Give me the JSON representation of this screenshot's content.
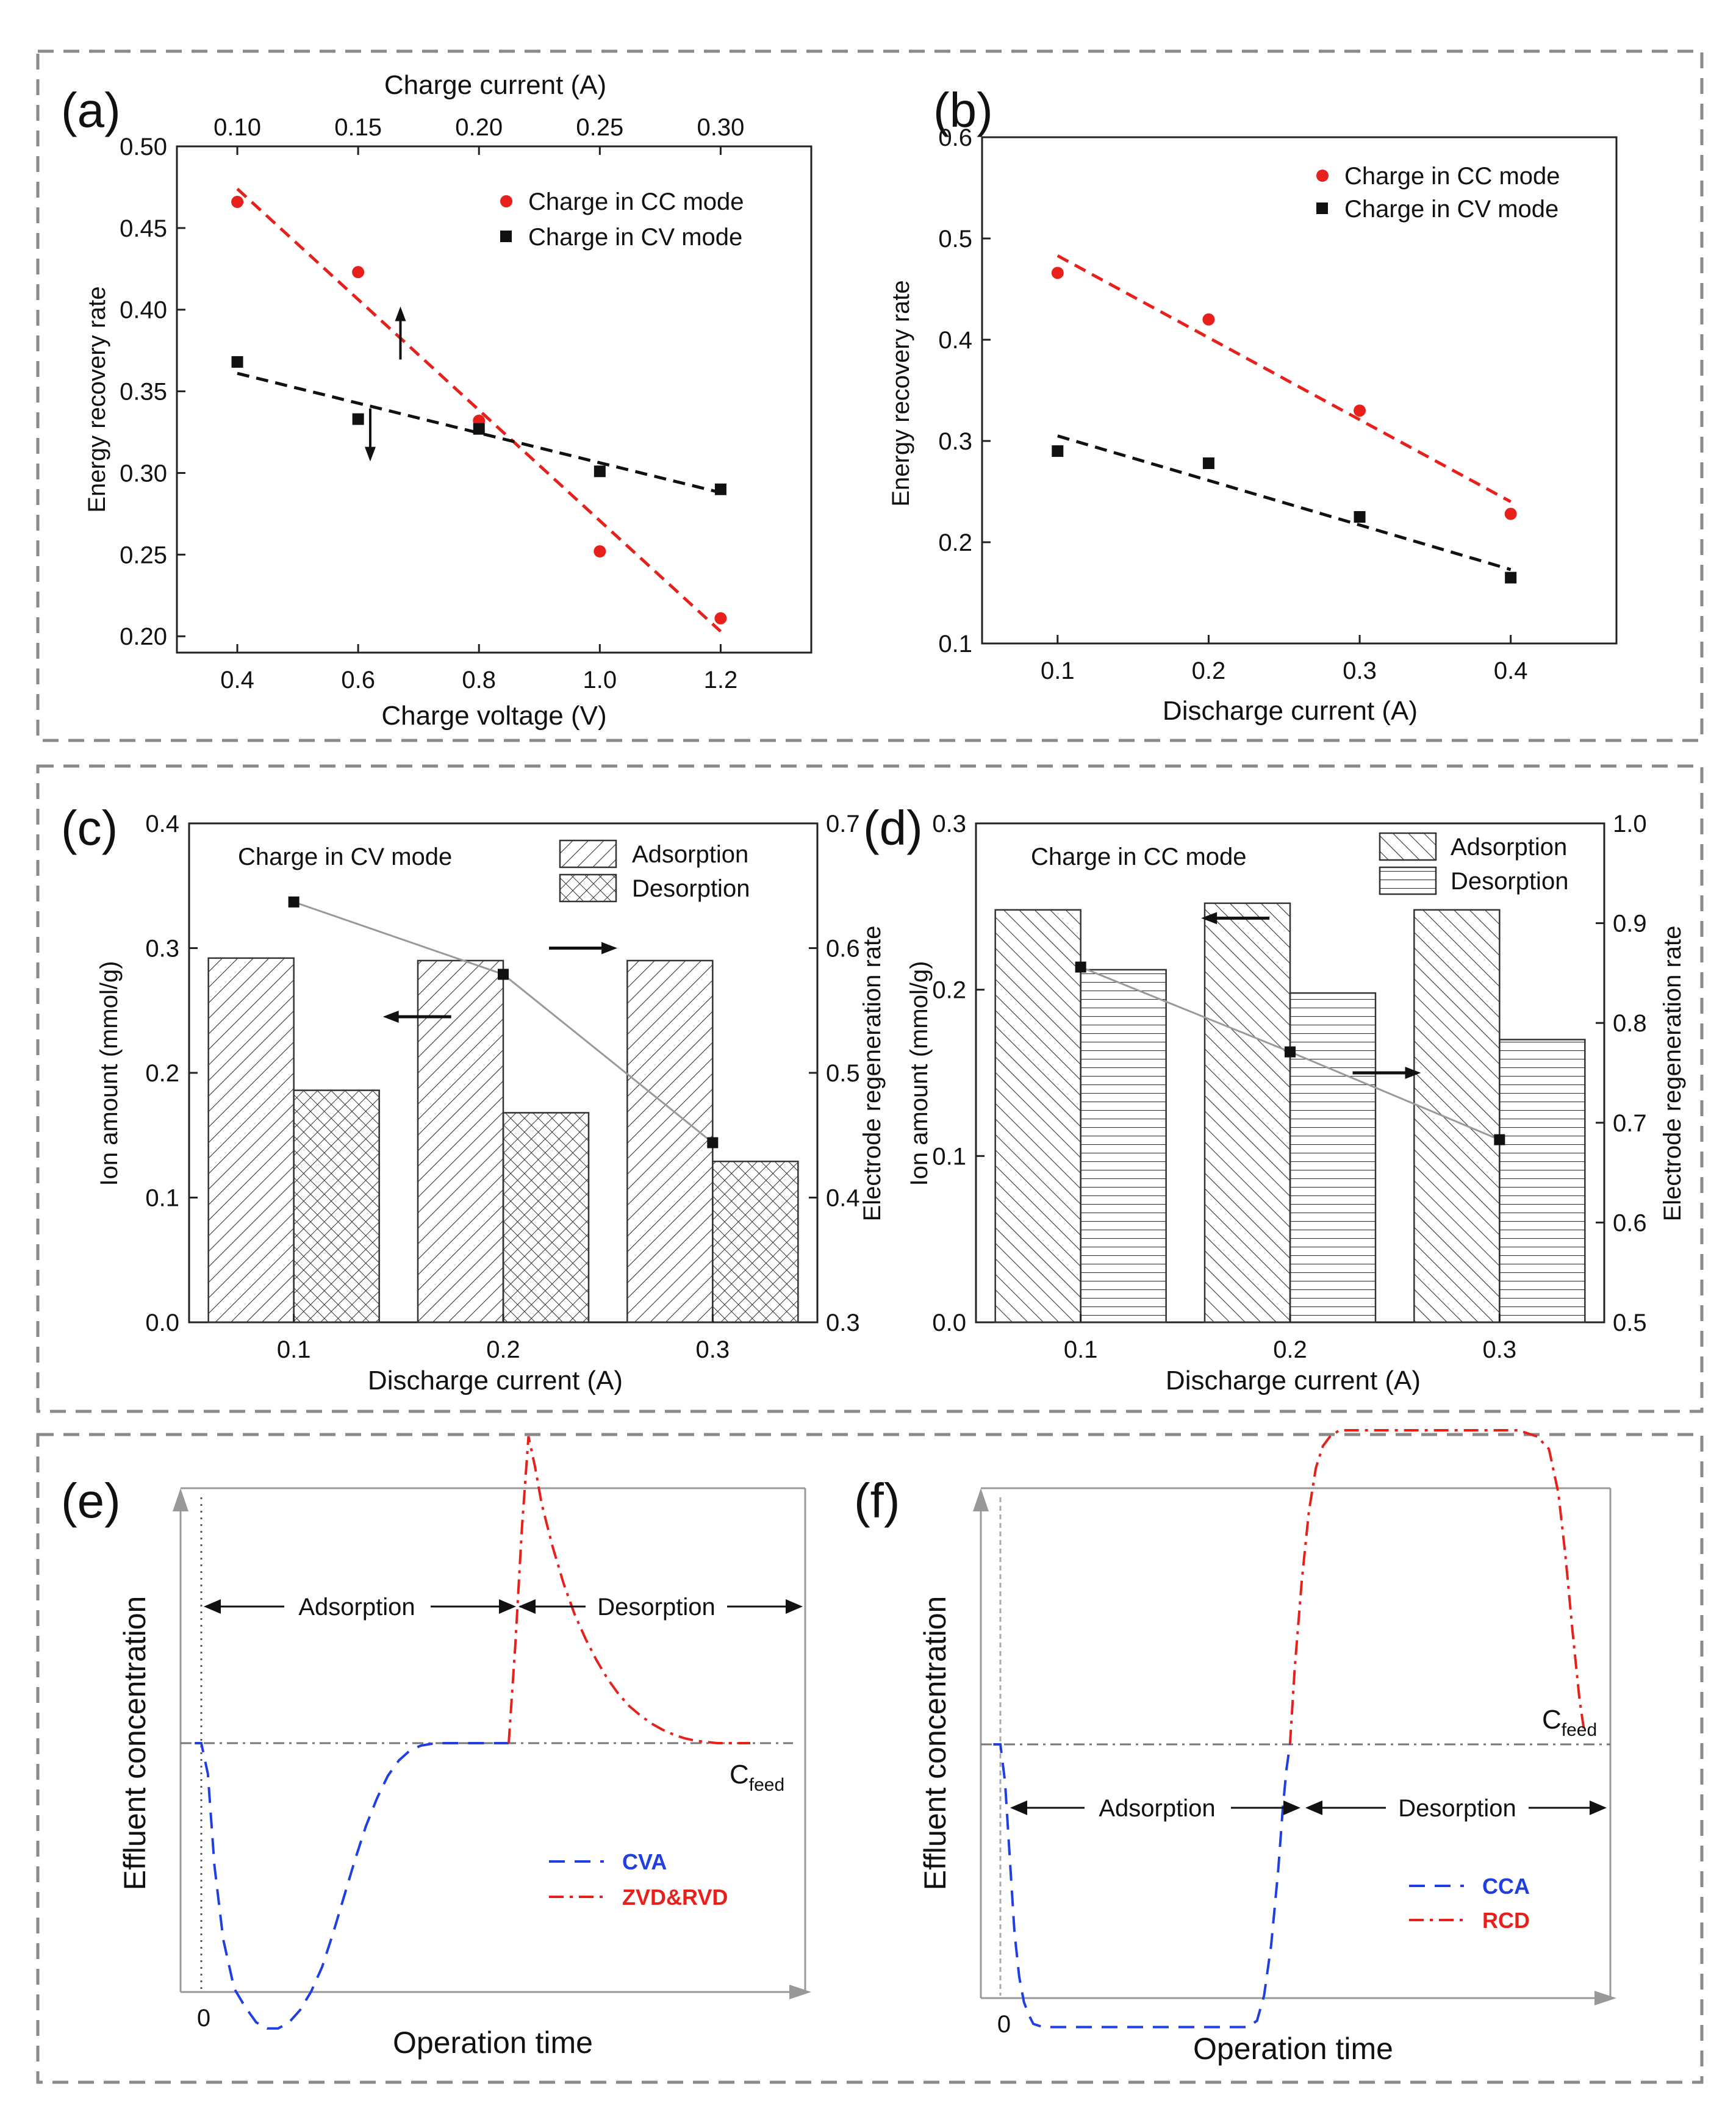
{
  "colors": {
    "cc": "#e8201c",
    "cv": "#111111",
    "blue": "#1f3fe0",
    "gray": "#888888",
    "frame": "#8a8a8a"
  },
  "chart_data": [
    {
      "id": "a",
      "type": "scatter",
      "panel_label": "(a)",
      "xlabel": "Charge voltage  (V)",
      "top_xlabel": "Charge current (A)",
      "ylabel": "Energy recovery rate",
      "xlim": [
        0.3,
        1.35
      ],
      "ylim": [
        0.19,
        0.5
      ],
      "x_ticks": [
        "0.4",
        "0.6",
        "0.8",
        "1.0",
        "1.2"
      ],
      "top_ticks": [
        "0.10",
        "0.15",
        "0.20",
        "0.25",
        "0.30"
      ],
      "y_ticks": [
        "0.20",
        "0.25",
        "0.30",
        "0.35",
        "0.40",
        "0.45",
        "0.50"
      ],
      "series": [
        {
          "name": "Charge in CC mode",
          "color": "#e8201c",
          "marker": "circle",
          "x": [
            0.4,
            0.6,
            0.8,
            1.0,
            1.2
          ],
          "y": [
            0.466,
            0.423,
            0.332,
            0.252,
            0.211
          ],
          "fit": [
            [
              0.4,
              0.474
            ],
            [
              1.2,
              0.203
            ]
          ]
        },
        {
          "name": "Charge in CV mode",
          "color": "#111111",
          "marker": "square",
          "x": [
            0.4,
            0.6,
            0.8,
            1.0,
            1.2
          ],
          "y": [
            0.368,
            0.333,
            0.327,
            0.301,
            0.29
          ],
          "fit": [
            [
              0.4,
              0.361
            ],
            [
              1.2,
              0.288
            ]
          ]
        }
      ],
      "annotations": [
        {
          "type": "arrow-up",
          "x": 0.67,
          "y": 0.39
        },
        {
          "type": "arrow-down",
          "x": 0.62,
          "y": 0.319
        }
      ]
    },
    {
      "id": "b",
      "type": "scatter",
      "panel_label": "(b)",
      "xlabel": "Discharge current (A)",
      "ylabel": "Energy recovery rate",
      "xlim": [
        0.05,
        0.47
      ],
      "ylim": [
        0.1,
        0.6
      ],
      "x_ticks": [
        "0.1",
        "0.2",
        "0.3",
        "0.4"
      ],
      "y_ticks": [
        "0.1",
        "0.2",
        "0.3",
        "0.4",
        "0.5",
        "0.6"
      ],
      "series": [
        {
          "name": "Charge in CC mode",
          "color": "#e8201c",
          "marker": "circle",
          "x": [
            0.1,
            0.2,
            0.3,
            0.4
          ],
          "y": [
            0.466,
            0.42,
            0.33,
            0.228
          ],
          "fit": [
            [
              0.1,
              0.483
            ],
            [
              0.4,
              0.24
            ]
          ]
        },
        {
          "name": "Charge in CV mode",
          "color": "#111111",
          "marker": "square",
          "x": [
            0.1,
            0.2,
            0.3,
            0.4
          ],
          "y": [
            0.29,
            0.278,
            0.225,
            0.165
          ],
          "fit": [
            [
              0.1,
              0.305
            ],
            [
              0.4,
              0.173
            ]
          ]
        }
      ]
    },
    {
      "id": "c",
      "type": "bar",
      "panel_label": "(c)",
      "inset_title": "Charge in CV mode",
      "xlabel": "Discharge current (A)",
      "ylabel": "Ion amount  (mmol/g)",
      "ylabel_right": "Electrode  regeneration rate",
      "categories": [
        "0.1",
        "0.2",
        "0.3"
      ],
      "ylim": [
        0,
        0.4
      ],
      "ylim_right": [
        0.3,
        0.7
      ],
      "y_ticks": [
        "0.0",
        "0.1",
        "0.2",
        "0.3",
        "0.4"
      ],
      "y_ticks_right": [
        "0.3",
        "0.4",
        "0.5",
        "0.6",
        "0.7"
      ],
      "series": [
        {
          "name": "Adsorption",
          "pattern": "diag",
          "values": [
            0.292,
            0.29,
            0.29
          ]
        },
        {
          "name": "Desorption",
          "pattern": "cross",
          "values": [
            0.186,
            0.168,
            0.129
          ]
        }
      ],
      "line": {
        "name": "Electrode regeneration rate",
        "values": [
          0.637,
          0.579,
          0.444
        ]
      },
      "annotations": [
        {
          "type": "arrow-left",
          "x": 1.6,
          "y": 0.245
        },
        {
          "type": "arrow-right",
          "x": 2.37,
          "y": 0.6
        }
      ]
    },
    {
      "id": "d",
      "type": "bar",
      "panel_label": "(d)",
      "inset_title": "Charge in CC mode",
      "xlabel": "Discharge current (A)",
      "ylabel": "Ion amount  (mmol/g)",
      "ylabel_right": "Electrode regeneration rate",
      "categories": [
        "0.1",
        "0.2",
        "0.3"
      ],
      "ylim": [
        0,
        0.3
      ],
      "ylim_right": [
        0.5,
        1.0
      ],
      "y_ticks": [
        "0.0",
        "0.1",
        "0.2",
        "0.3"
      ],
      "y_ticks_right": [
        "0.5",
        "0.6",
        "0.7",
        "0.8",
        "0.9",
        "1.0"
      ],
      "series": [
        {
          "name": "Adsorption",
          "pattern": "back",
          "values": [
            0.248,
            0.252,
            0.248
          ]
        },
        {
          "name": "Desorption",
          "pattern": "horiz",
          "values": [
            0.212,
            0.198,
            0.17
          ]
        }
      ],
      "line": {
        "name": "Electrode regeneration rate",
        "values": [
          0.856,
          0.771,
          0.683
        ]
      },
      "annotations": [
        {
          "type": "arrow-left",
          "x": 1.75,
          "y": 0.243
        },
        {
          "type": "arrow-right",
          "x": 2.45,
          "y": 0.75
        }
      ]
    },
    {
      "id": "e",
      "type": "line",
      "panel_label": "(e)",
      "xlabel": "Operation time",
      "ylabel": "Effluent concentration",
      "origin_label": "0",
      "feed_label": "C",
      "feed_sub": "feed",
      "phases": [
        "Adsorption",
        "Desorption"
      ],
      "series": [
        {
          "name": "CVA",
          "color": "#1f3fe0",
          "style": "dash",
          "x": [
            -0.3,
            0,
            0.3,
            0.6,
            1,
            1.5,
            2,
            2.5,
            3,
            3.5,
            4,
            4.5,
            5,
            5.5,
            6,
            6.5,
            7,
            7.5,
            8,
            8.5,
            9,
            9.5,
            10,
            10.5,
            11,
            11.5,
            12,
            12.5,
            13,
            13.5,
            14
          ],
          "y": [
            0.5,
            0.5,
            0.45,
            0.3,
            0.18,
            0.1,
            0.07,
            0.045,
            0.035,
            0.035,
            0.045,
            0.065,
            0.095,
            0.135,
            0.19,
            0.25,
            0.31,
            0.365,
            0.41,
            0.447,
            0.472,
            0.488,
            0.496,
            0.499,
            0.5,
            0.5,
            0.5,
            0.5,
            0.5,
            0.5,
            0.5
          ]
        },
        {
          "name": "ZVD&RVD",
          "color": "#e8201c",
          "style": "dashdot",
          "x": [
            14,
            14.3,
            14.6,
            14.9,
            15.2,
            15.5,
            16,
            16.5,
            17,
            17.5,
            18,
            18.5,
            19,
            19.5,
            20,
            20.5,
            21,
            21.5,
            22,
            22.5,
            23,
            23.5,
            24,
            24.5,
            25
          ],
          "y": [
            0.5,
            0.66,
            0.85,
            1.0,
            0.95,
            0.89,
            0.82,
            0.76,
            0.71,
            0.67,
            0.635,
            0.605,
            0.58,
            0.56,
            0.545,
            0.532,
            0.522,
            0.514,
            0.508,
            0.504,
            0.502,
            0.5,
            0.5,
            0.5,
            0.5
          ]
        }
      ]
    },
    {
      "id": "f",
      "type": "line",
      "panel_label": "(f)",
      "xlabel": "Operation time",
      "ylabel": "Effluent concentration",
      "origin_label": "0",
      "feed_label": "C",
      "feed_sub": "feed",
      "phases": [
        "Adsorption",
        "Desorption"
      ],
      "series": [
        {
          "name": "CCA",
          "color": "#1f3fe0",
          "style": "dash",
          "x": [
            -0.3,
            0,
            0.2,
            0.4,
            0.6,
            0.8,
            1,
            1.2,
            1.4,
            1.8,
            2.5,
            4,
            6,
            8,
            9.5,
            10.5,
            10.9,
            11.2,
            11.5,
            11.8,
            12,
            12.15,
            12.3
          ],
          "y": [
            0.5,
            0.5,
            0.44,
            0.32,
            0.2,
            0.13,
            0.09,
            0.07,
            0.055,
            0.05,
            0.05,
            0.05,
            0.05,
            0.05,
            0.05,
            0.05,
            0.06,
            0.1,
            0.18,
            0.3,
            0.4,
            0.46,
            0.5
          ]
        },
        {
          "name": "RCD",
          "color": "#e8201c",
          "style": "dashdot",
          "x": [
            12.3,
            12.5,
            12.8,
            13.1,
            13.4,
            13.7,
            14,
            14.4,
            15,
            16,
            18,
            20,
            22,
            22.8,
            23.3,
            23.7,
            24,
            24.3,
            24.6,
            24.8
          ],
          "y": [
            0.5,
            0.62,
            0.76,
            0.87,
            0.94,
            0.975,
            0.99,
            1.0,
            1.0,
            1.0,
            1.0,
            1.0,
            1.0,
            0.99,
            0.97,
            0.9,
            0.8,
            0.68,
            0.57,
            0.52
          ]
        }
      ]
    }
  ]
}
